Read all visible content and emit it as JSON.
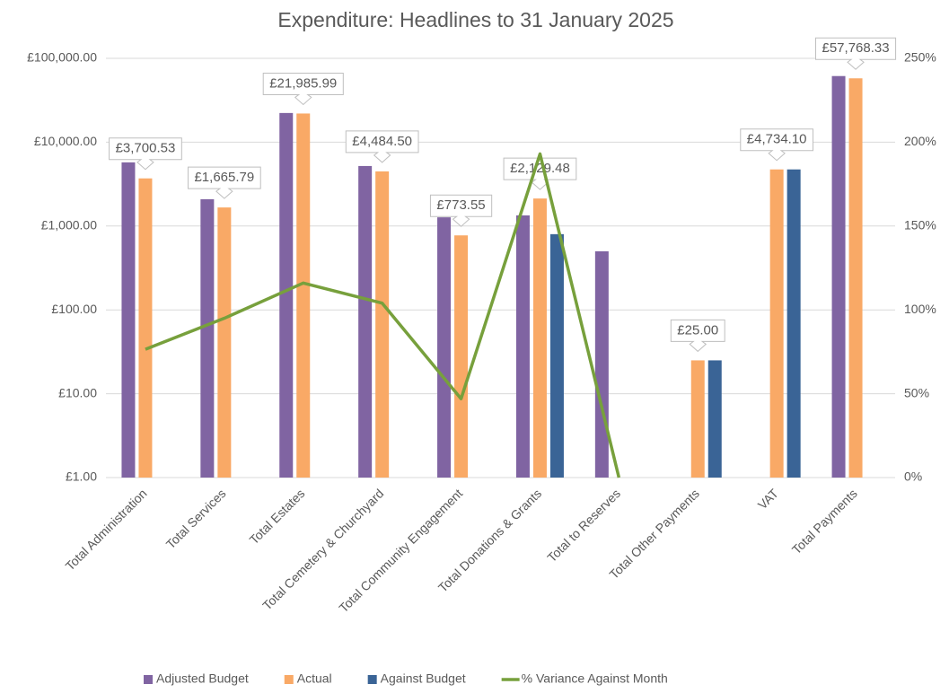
{
  "chart_data": {
    "type": "bar",
    "title": "Expenditure: Headlines to 31 January 2025",
    "categories": [
      "Total Administration",
      "Total Services",
      "Total Estates",
      "Total Cemetery & Churchyard",
      "Total Community Engagement",
      "Total Donations & Grants",
      "Total to Reserves",
      "Total Other Payments",
      "VAT",
      "Total Payments"
    ],
    "yscale": "log",
    "ylim": [
      1,
      100000
    ],
    "yticks": [
      {
        "value": 1,
        "label": "£1.00"
      },
      {
        "value": 10,
        "label": "£10.00"
      },
      {
        "value": 100,
        "label": "£100.00"
      },
      {
        "value": 1000,
        "label": "£1,000.00"
      },
      {
        "value": 10000,
        "label": "£10,000.00"
      },
      {
        "value": 100000,
        "label": "£100,000.00"
      }
    ],
    "y2lim": [
      0,
      250
    ],
    "y2ticks": [
      {
        "value": 0,
        "label": "0%"
      },
      {
        "value": 50,
        "label": "50%"
      },
      {
        "value": 100,
        "label": "100%"
      },
      {
        "value": 150,
        "label": "150%"
      },
      {
        "value": 200,
        "label": "200%"
      },
      {
        "value": 250,
        "label": "250%"
      }
    ],
    "grid": true,
    "legend": "bottom",
    "series": [
      {
        "name": "Adjusted Budget",
        "type": "bar",
        "color": "#8064a2",
        "values": [
          5750,
          2090,
          22300,
          5200,
          1270,
          1340,
          500,
          null,
          null,
          61500
        ]
      },
      {
        "name": "Actual",
        "type": "bar",
        "color": "#f9a966",
        "values": [
          3700.53,
          1665.79,
          21985.99,
          4484.5,
          773.55,
          2129.48,
          null,
          25.0,
          4734.1,
          57768.33
        ],
        "value_labels": [
          "£3,700.53",
          "£1,665.79",
          "£21,985.99",
          "£4,484.50",
          "£773.55",
          "£2,129.48",
          null,
          "£25.00",
          "£4,734.10",
          "£57,768.33"
        ]
      },
      {
        "name": "Against Budget",
        "type": "bar",
        "color": "#3a6496",
        "values": [
          null,
          null,
          null,
          null,
          null,
          800,
          null,
          25,
          4734,
          null
        ]
      },
      {
        "name": "% Variance Against Month",
        "type": "line",
        "axis": "y2",
        "color": "#77a03c",
        "values": [
          76.5,
          95,
          116,
          104,
          47,
          193,
          0,
          null,
          null,
          null
        ]
      }
    ]
  }
}
